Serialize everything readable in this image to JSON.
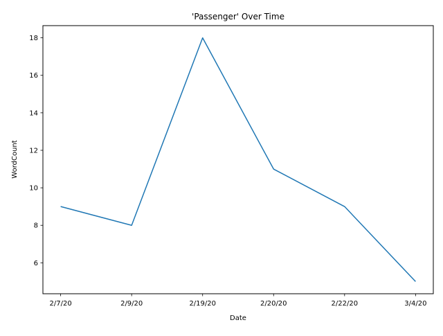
{
  "chart_data": {
    "type": "line",
    "title": "'Passenger' Over Time",
    "xlabel": "Date",
    "ylabel": "WordCount",
    "categories": [
      "2/7/20",
      "2/9/20",
      "2/19/20",
      "2/20/20",
      "2/22/20",
      "3/4/20"
    ],
    "series": [
      {
        "values": [
          9,
          8,
          18,
          11,
          9,
          5
        ]
      }
    ],
    "ylim": [
      4.35,
      18.65
    ],
    "yticks": [
      6,
      8,
      10,
      12,
      14,
      16,
      18
    ],
    "grid": false,
    "legend": "none",
    "colors": {
      "line": "#1f77b4",
      "axes": "#000000",
      "background": "#ffffff"
    }
  }
}
